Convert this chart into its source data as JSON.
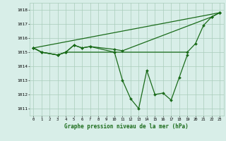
{
  "background_color": "#d8eee8",
  "grid_color": "#aaccbb",
  "line_color": "#1a6b1a",
  "title": "Graphe pression niveau de la mer (hPa)",
  "xlim": [
    -0.5,
    23.5
  ],
  "ylim": [
    1010.5,
    1018.5
  ],
  "yticks": [
    1011,
    1012,
    1013,
    1014,
    1015,
    1016,
    1017,
    1018
  ],
  "xticks": [
    0,
    1,
    2,
    3,
    4,
    5,
    6,
    7,
    8,
    9,
    10,
    11,
    12,
    13,
    14,
    15,
    16,
    17,
    18,
    19,
    20,
    21,
    22,
    23
  ],
  "series1_x": [
    0,
    1,
    3,
    4,
    5,
    6,
    7,
    10,
    11,
    12,
    13,
    14,
    15,
    16,
    17,
    18,
    19
  ],
  "series1_y": [
    1015.3,
    1015.0,
    1014.8,
    1015.0,
    1015.5,
    1015.3,
    1015.4,
    1015.0,
    1013.0,
    1011.7,
    1011.0,
    1013.7,
    1012.0,
    1012.1,
    1011.6,
    1013.2,
    1014.8
  ],
  "series2_x": [
    0,
    1,
    3,
    4,
    10,
    19,
    20,
    21,
    22,
    23
  ],
  "series2_y": [
    1015.3,
    1015.0,
    1014.8,
    1015.0,
    1015.0,
    1015.0,
    1015.6,
    1016.9,
    1017.5,
    1017.8
  ],
  "series3_x": [
    0,
    1,
    3,
    4,
    5,
    6,
    7,
    10,
    11,
    22,
    23
  ],
  "series3_y": [
    1015.3,
    1015.0,
    1014.8,
    1015.0,
    1015.5,
    1015.3,
    1015.4,
    1015.2,
    1015.1,
    1017.5,
    1017.8
  ],
  "series4_x": [
    0,
    23
  ],
  "series4_y": [
    1015.3,
    1017.8
  ],
  "lw": 0.9,
  "ms": 2.0
}
